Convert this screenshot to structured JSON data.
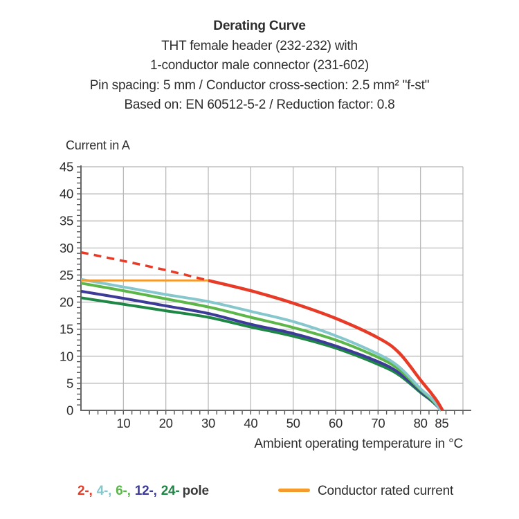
{
  "header": {
    "title": "Derating Curve",
    "subtitle_lines": [
      "THT female header (232-232) with",
      "1-conductor male connector (231-602)",
      "Pin spacing: 5 mm / Conductor cross-section: 2.5 mm² \"f-st\"",
      "Based on: EN 60512-5-2 / Reduction factor: 0.8"
    ]
  },
  "chart_data": {
    "type": "line",
    "title": "Derating Curve",
    "xlabel": "Ambient operating temperature in °C",
    "ylabel": "Current in A",
    "xlim": [
      0,
      90
    ],
    "ylim": [
      0,
      45
    ],
    "grid": true,
    "x_major_ticks": [
      10,
      20,
      30,
      40,
      50,
      60,
      70,
      80,
      85
    ],
    "x_gridline_step": 10,
    "x_minor_tick_step": 2,
    "y_label_step": 5,
    "y_minor_tick_step": 1,
    "series": [
      {
        "name": "24-pole",
        "color": "#1f8746",
        "width": 4,
        "points": [
          [
            0,
            20.8
          ],
          [
            10,
            19.6
          ],
          [
            20,
            18.4
          ],
          [
            30,
            17.2
          ],
          [
            40,
            15.4
          ],
          [
            50,
            13.7
          ],
          [
            60,
            11.5
          ],
          [
            70,
            8.5
          ],
          [
            75,
            6.5
          ],
          [
            80,
            3.3
          ],
          [
            82.5,
            1.8
          ],
          [
            85,
            0
          ]
        ]
      },
      {
        "name": "12-pole",
        "color": "#3c3b97",
        "width": 4,
        "points": [
          [
            0,
            22.0
          ],
          [
            10,
            20.7
          ],
          [
            20,
            19.3
          ],
          [
            30,
            17.9
          ],
          [
            40,
            15.9
          ],
          [
            50,
            14.2
          ],
          [
            60,
            11.9
          ],
          [
            70,
            9.0
          ],
          [
            75,
            6.9
          ],
          [
            80,
            3.5
          ],
          [
            82.5,
            1.9
          ],
          [
            84.9,
            0
          ]
        ]
      },
      {
        "name": "6-pole",
        "color": "#5cb64a",
        "width": 4,
        "points": [
          [
            0,
            23.5
          ],
          [
            10,
            22.1
          ],
          [
            20,
            20.6
          ],
          [
            30,
            19.1
          ],
          [
            40,
            17.2
          ],
          [
            50,
            15.3
          ],
          [
            60,
            13.0
          ],
          [
            70,
            9.8
          ],
          [
            75,
            7.5
          ],
          [
            80,
            3.8
          ],
          [
            82.5,
            2.1
          ],
          [
            84.9,
            0
          ]
        ]
      },
      {
        "name": "4-pole",
        "color": "#85c7cc",
        "width": 4,
        "points": [
          [
            0,
            24.2
          ],
          [
            10,
            22.8
          ],
          [
            20,
            21.4
          ],
          [
            30,
            20.1
          ],
          [
            40,
            18.3
          ],
          [
            50,
            16.4
          ],
          [
            60,
            13.8
          ],
          [
            70,
            10.4
          ],
          [
            75,
            8.0
          ],
          [
            80,
            4.0
          ],
          [
            82.5,
            2.3
          ],
          [
            84.8,
            0
          ]
        ]
      },
      {
        "name": "Conductor rated current",
        "color": "#f49b2e",
        "width": 3,
        "points": [
          [
            0,
            24
          ],
          [
            30,
            24
          ]
        ]
      },
      {
        "name": "2-pole-dashed",
        "color": "#e73b27",
        "width": 3.5,
        "dash": "11 8",
        "points": [
          [
            0,
            29.2
          ],
          [
            10,
            27.6
          ],
          [
            20,
            25.9
          ],
          [
            30,
            24
          ]
        ]
      },
      {
        "name": "2-pole",
        "color": "#e73b27",
        "width": 4.5,
        "points": [
          [
            30,
            24
          ],
          [
            40,
            22.1
          ],
          [
            50,
            19.8
          ],
          [
            60,
            17.0
          ],
          [
            70,
            13.4
          ],
          [
            75,
            10.6
          ],
          [
            80,
            5.6
          ],
          [
            82.5,
            3.2
          ],
          [
            84,
            1.6
          ],
          [
            85.2,
            0
          ]
        ]
      }
    ],
    "rated_current_value": 24,
    "cutoff_temperature": 85
  },
  "legend": {
    "pole_segments": [
      {
        "label": "2-,",
        "color": "#e73b27"
      },
      {
        "label": "4-,",
        "color": "#85c7cc"
      },
      {
        "label": "6-,",
        "color": "#5cb64a"
      },
      {
        "label": "12-,",
        "color": "#3c3b97"
      },
      {
        "label": "24-",
        "color": "#1f8746"
      }
    ],
    "pole_suffix": "pole",
    "rated": {
      "label": "Conductor rated current",
      "color": "#f49b2e"
    }
  },
  "style_colors": {
    "grid": "#b4b4b4",
    "axis": "#666666",
    "tick": "#555555",
    "text": "#2d2d2d"
  }
}
